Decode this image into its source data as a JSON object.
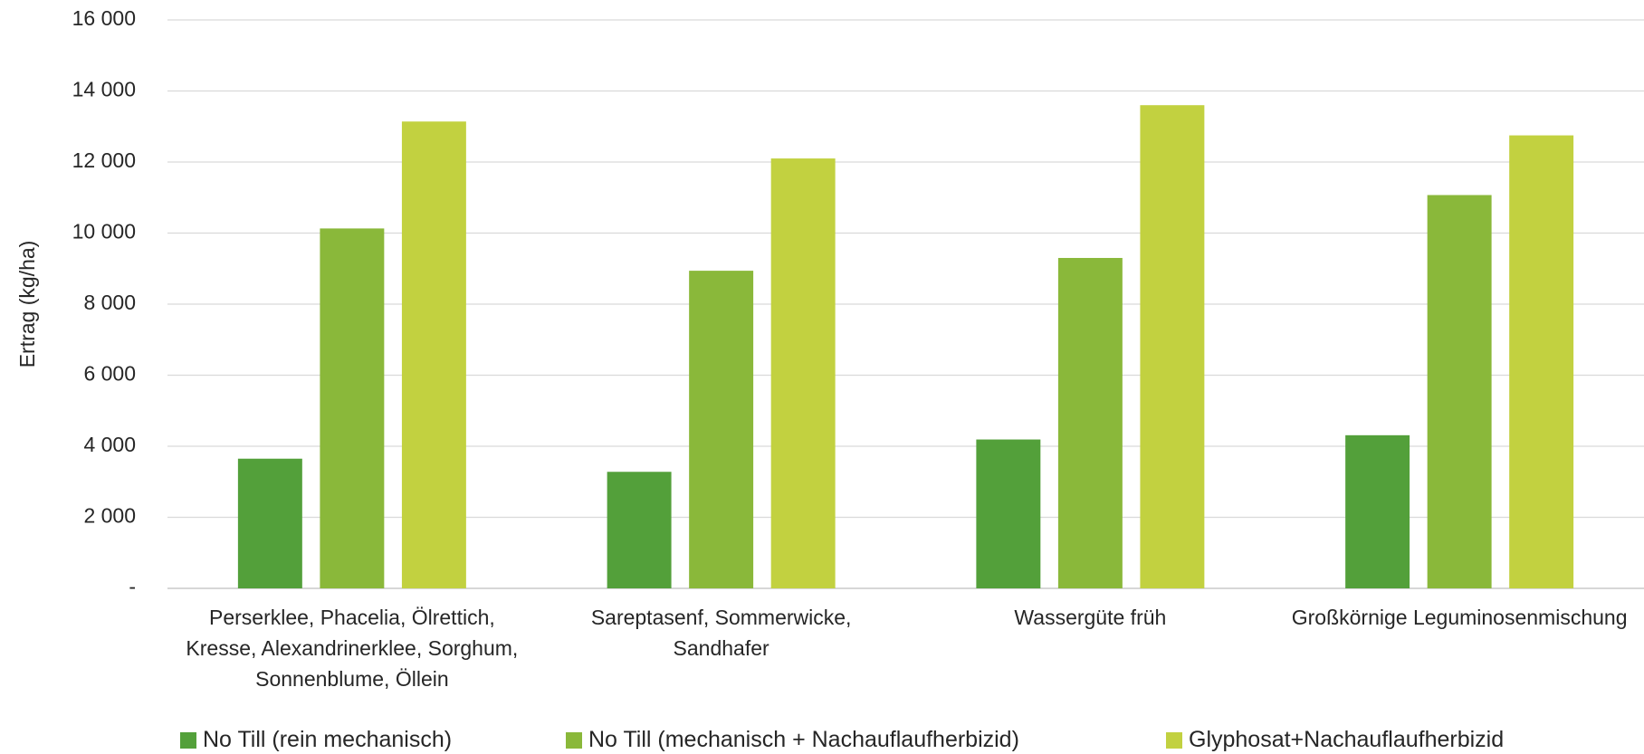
{
  "chart_data": {
    "type": "bar",
    "y_label": "Ertrag (kg/ha)",
    "categories": [
      "Perserklee, Phacelia, Ölrettich, Kresse, Alexandrinerklee, Sorghum, Sonnenblume, Öllein",
      "Sareptasenf, Sommerwicke, Sandhafer",
      "Wassergüte früh",
      "Großkörnige Leguminosenmischung"
    ],
    "series": [
      {
        "name": "No Till (rein mechanisch)",
        "color": "#53a03a",
        "values": [
          3650,
          3280,
          4190,
          4310
        ]
      },
      {
        "name": "No Till (mechanisch + Nachauflaufherbizid)",
        "color": "#8ab83a",
        "values": [
          10130,
          8940,
          9300,
          11070
        ]
      },
      {
        "name": "Glyphosat+Nachauflaufherbizid",
        "color": "#c2d140",
        "values": [
          13140,
          12100,
          13600,
          12750
        ]
      }
    ],
    "ylim": [
      0,
      16000
    ],
    "yticks": [
      {
        "value": 0,
        "label": "-"
      },
      {
        "value": 2000,
        "label": "2 000"
      },
      {
        "value": 4000,
        "label": "4 000"
      },
      {
        "value": 6000,
        "label": "6 000"
      },
      {
        "value": 8000,
        "label": "8 000"
      },
      {
        "value": 10000,
        "label": "10 000"
      },
      {
        "value": 12000,
        "label": "12 000"
      },
      {
        "value": 14000,
        "label": "14 000"
      },
      {
        "value": 16000,
        "label": "16 000"
      }
    ],
    "grid": true,
    "legend": "bottom"
  }
}
